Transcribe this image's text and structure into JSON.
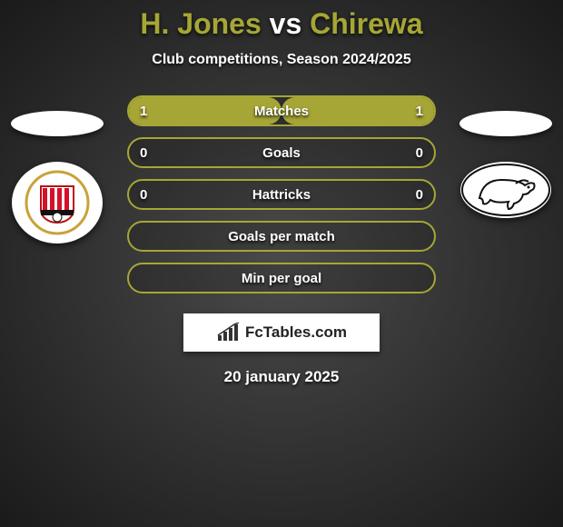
{
  "title": {
    "player1": "H. Jones",
    "vs": "vs",
    "player2": "Chirewa"
  },
  "subtitle": "Club competitions, Season 2024/2025",
  "accent_color": "#a6a636",
  "fill_color": "#a6a636",
  "border_color": "#a6a636",
  "text_color": "#ffffff",
  "stats": [
    {
      "label": "Matches",
      "left_val": "1",
      "right_val": "1",
      "left_pct": 50,
      "right_pct": 50
    },
    {
      "label": "Goals",
      "left_val": "0",
      "right_val": "0",
      "left_pct": 0,
      "right_pct": 0
    },
    {
      "label": "Hattricks",
      "left_val": "0",
      "right_val": "0",
      "left_pct": 0,
      "right_pct": 0
    },
    {
      "label": "Goals per match",
      "left_val": "",
      "right_val": "",
      "left_pct": 0,
      "right_pct": 0
    },
    {
      "label": "Min per goal",
      "left_val": "",
      "right_val": "",
      "left_pct": 0,
      "right_pct": 0
    }
  ],
  "logo_text": "FcTables.com",
  "date": "20 january 2025",
  "left_club": "Sunderland",
  "right_club": "Derby County"
}
